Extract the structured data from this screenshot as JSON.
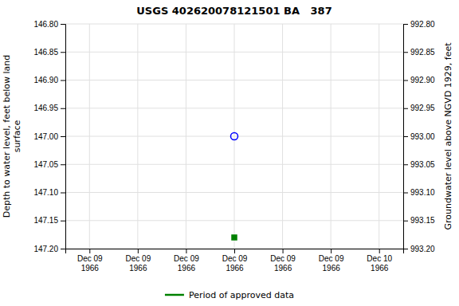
{
  "chart_data": {
    "type": "scatter",
    "title": "USGS 402620078121501 BA   387",
    "y_label": "Depth to water level, feet below land\nsurface",
    "y2_label": "Groundwater level above NGVD 1929, feet",
    "categories": [
      "Dec 09\n1966",
      "Dec 09\n1966",
      "Dec 09\n1966",
      "Dec 09\n1966",
      "Dec 09\n1966",
      "Dec 09\n1966",
      "Dec 10\n1966"
    ],
    "series": [
      {
        "marker": "circle-open",
        "color": "blue",
        "values": [
          null,
          null,
          null,
          147.0,
          null,
          null,
          null
        ]
      },
      {
        "name": "Period of approved data",
        "marker": "square",
        "color": "#008000",
        "values": [
          null,
          null,
          null,
          147.18,
          null,
          null,
          null
        ]
      }
    ],
    "ylim": [
      147.2,
      146.8
    ],
    "yticks": [
      {
        "value": 146.8,
        "label": "146.80"
      },
      146.85,
      {
        "value": 146.9,
        "label": "146.90"
      },
      146.95,
      {
        "value": 147.0,
        "label": "147.00"
      },
      147.05,
      {
        "value": 147.1,
        "label": "147.10"
      },
      147.15,
      {
        "value": 147.2,
        "label": "147.20"
      }
    ],
    "y2lim": [
      993.2,
      992.8
    ],
    "y2ticks": [
      {
        "value": 992.8,
        "label": "992.80"
      },
      992.85,
      {
        "value": 992.9,
        "label": "992.90"
      },
      992.95,
      {
        "value": 993.0,
        "label": "993.00"
      },
      993.05,
      {
        "value": 993.1,
        "label": "993.10"
      },
      993.15,
      {
        "value": 993.2,
        "label": "993.20"
      }
    ],
    "grid": true,
    "legend": "bottom"
  }
}
